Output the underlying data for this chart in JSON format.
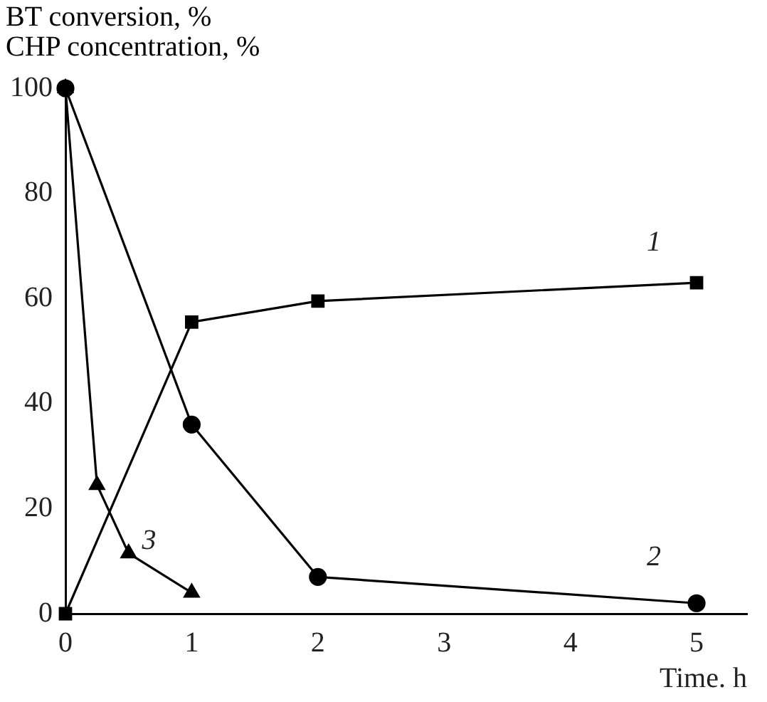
{
  "chart_data": {
    "type": "line",
    "ylabel": "BT conversion, %\nCHP concentration, %",
    "xlabel": "Time. h",
    "series": [
      {
        "name": "1",
        "color": "#000000",
        "marker": "square",
        "x": [
          0,
          1,
          2,
          5
        ],
        "values": [
          0,
          55.5,
          59.5,
          63
        ]
      },
      {
        "name": "2",
        "color": "#000000",
        "marker": "circle",
        "x": [
          0,
          1,
          2,
          5
        ],
        "values": [
          100,
          36,
          7,
          2
        ]
      },
      {
        "name": "3",
        "color": "#000000",
        "marker": "triangle",
        "x": [
          0,
          0.25,
          0.5,
          1
        ],
        "values": [
          100,
          24.5,
          11.5,
          4
        ]
      }
    ],
    "xlim": [
      0,
      5.4
    ],
    "xticks": [
      0,
      1,
      2,
      3,
      4,
      5
    ],
    "ylim": [
      0,
      100
    ],
    "yticks": [
      0,
      20,
      40,
      60,
      80,
      100
    ],
    "grid": false,
    "legend": false,
    "line_style": "solid"
  }
}
